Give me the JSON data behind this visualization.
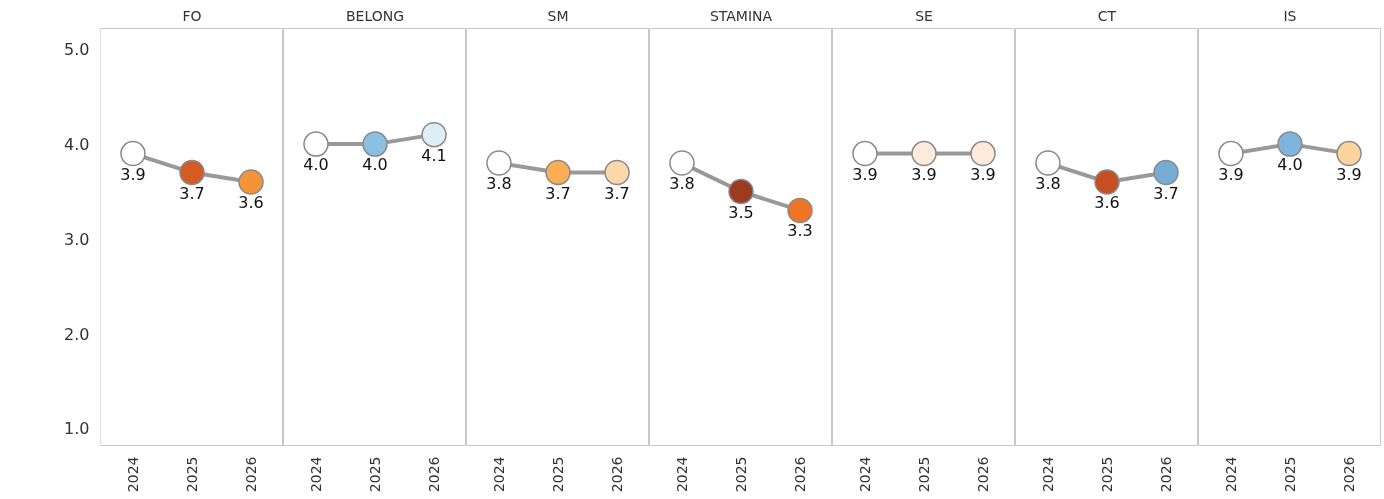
{
  "chart_data": [
    {
      "type": "line",
      "title": "FO",
      "categories": [
        "2024",
        "2025",
        "2026"
      ],
      "values": [
        3.9,
        3.7,
        3.6
      ],
      "value_labels": [
        "3.9",
        "3.7",
        "3.6"
      ],
      "color": "#999999",
      "colors": [
        "#ffffff",
        "#d45b21",
        "#f39438"
      ],
      "marker": "circle",
      "ylim": [
        0.82,
        5.22
      ],
      "yticks": [
        {
          "value": 1,
          "label": "1.0"
        },
        {
          "value": 2,
          "label": "2.0"
        },
        {
          "value": 3,
          "label": "3.0"
        },
        {
          "value": 4,
          "label": "4.0"
        },
        {
          "value": 5,
          "label": "5.0"
        }
      ]
    },
    {
      "type": "line",
      "title": "BELONG",
      "categories": [
        "2024",
        "2025",
        "2026"
      ],
      "values": [
        4.0,
        4.0,
        4.1
      ],
      "value_labels": [
        "4.0",
        "4.0",
        "4.1"
      ],
      "color": "#999999",
      "colors": [
        "#ffffff",
        "#8bc0e0",
        "#ddeef9"
      ],
      "marker": "circle",
      "ylim": [
        0.82,
        5.22
      ],
      "tick_labels": "x"
    },
    {
      "type": "line",
      "title": "SM",
      "categories": [
        "2024",
        "2025",
        "2026"
      ],
      "values": [
        3.8,
        3.7,
        3.7
      ],
      "value_labels": [
        "3.8",
        "3.7",
        "3.7"
      ],
      "color": "#999999",
      "colors": [
        "#ffffff",
        "#f9ad55",
        "#fdd7aa"
      ],
      "marker": "circle",
      "ylim": [
        0.82,
        5.22
      ],
      "tick_labels": "x"
    },
    {
      "type": "line",
      "title": "STAMINA",
      "categories": [
        "2024",
        "2025",
        "2026"
      ],
      "values": [
        3.8,
        3.5,
        3.3
      ],
      "value_labels": [
        "3.8",
        "3.5",
        "3.3"
      ],
      "color": "#999999",
      "colors": [
        "#ffffff",
        "#9c3b20",
        "#ef7524"
      ],
      "marker": "circle",
      "ylim": [
        0.82,
        5.22
      ],
      "tick_labels": "x"
    },
    {
      "type": "line",
      "title": "SE",
      "categories": [
        "2024",
        "2025",
        "2026"
      ],
      "values": [
        3.9,
        3.9,
        3.9
      ],
      "value_labels": [
        "3.9",
        "3.9",
        "3.9"
      ],
      "color": "#999999",
      "colors": [
        "#ffffff",
        "#feeadb",
        "#feeadb"
      ],
      "marker": "circle",
      "ylim": [
        0.82,
        5.22
      ],
      "tick_labels": "x"
    },
    {
      "type": "line",
      "title": "CT",
      "categories": [
        "2024",
        "2025",
        "2026"
      ],
      "values": [
        3.8,
        3.6,
        3.7
      ],
      "value_labels": [
        "3.8",
        "3.6",
        "3.7"
      ],
      "color": "#999999",
      "colors": [
        "#ffffff",
        "#c84f22",
        "#75add6"
      ],
      "marker": "circle",
      "ylim": [
        0.82,
        5.22
      ],
      "tick_labels": "x"
    },
    {
      "type": "line",
      "title": "IS",
      "categories": [
        "2024",
        "2025",
        "2026"
      ],
      "values": [
        3.9,
        4.0,
        3.9
      ],
      "value_labels": [
        "3.9",
        "4.0",
        "3.9"
      ],
      "color": "#999999",
      "colors": [
        "#ffffff",
        "#7db5dc",
        "#fdd39e"
      ],
      "marker": "circle",
      "ylim": [
        0.82,
        5.22
      ],
      "tick_labels": "x"
    }
  ]
}
